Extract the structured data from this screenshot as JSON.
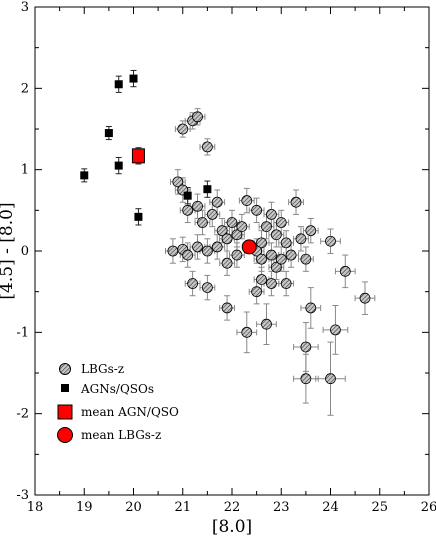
{
  "chart_data": {
    "type": "scatter",
    "title": "",
    "xlabel": "[8.0]",
    "ylabel": "[4.5] - [8.0]",
    "xlim": [
      18,
      26
    ],
    "ylim": [
      -3,
      3
    ],
    "xticks": [
      "18",
      "19",
      "20",
      "21",
      "22",
      "23",
      "24",
      "25",
      "26"
    ],
    "yticks": [
      "-3",
      "-2",
      "-1",
      "0",
      "1",
      "2",
      "3"
    ],
    "grid": false,
    "legend_position": "bottom-left",
    "legend": [
      "LBGs-z",
      "AGNs/QSOs",
      "mean AGN/QSO",
      "mean LBGs-z"
    ],
    "colors": {
      "lbg_fill": "#9a9a9a",
      "agn": "#000000",
      "mean": "#ff0000",
      "error": "#888888"
    },
    "series": [
      {
        "name": "LBGs-z",
        "marker": "circle-hatched",
        "points": [
          {
            "x": 21.0,
            "y": 1.5,
            "ex": 0.15,
            "ey": 0.1
          },
          {
            "x": 21.2,
            "y": 1.6,
            "ex": 0.15,
            "ey": 0.1
          },
          {
            "x": 21.3,
            "y": 1.65,
            "ex": 0.15,
            "ey": 0.1
          },
          {
            "x": 21.5,
            "y": 1.28,
            "ex": 0.15,
            "ey": 0.1
          },
          {
            "x": 20.9,
            "y": 0.85,
            "ex": 0.15,
            "ey": 0.15
          },
          {
            "x": 21.0,
            "y": 0.75,
            "ex": 0.15,
            "ey": 0.15
          },
          {
            "x": 21.1,
            "y": 0.5,
            "ex": 0.15,
            "ey": 0.15
          },
          {
            "x": 21.3,
            "y": 0.55,
            "ex": 0.15,
            "ey": 0.15
          },
          {
            "x": 21.4,
            "y": 0.35,
            "ex": 0.15,
            "ey": 0.15
          },
          {
            "x": 21.6,
            "y": 0.45,
            "ex": 0.15,
            "ey": 0.15
          },
          {
            "x": 21.7,
            "y": 0.6,
            "ex": 0.15,
            "ey": 0.15
          },
          {
            "x": 21.8,
            "y": 0.25,
            "ex": 0.15,
            "ey": 0.15
          },
          {
            "x": 21.9,
            "y": 0.15,
            "ex": 0.15,
            "ey": 0.15
          },
          {
            "x": 22.0,
            "y": 0.35,
            "ex": 0.15,
            "ey": 0.15
          },
          {
            "x": 22.1,
            "y": 0.2,
            "ex": 0.15,
            "ey": 0.15
          },
          {
            "x": 22.2,
            "y": 0.3,
            "ex": 0.15,
            "ey": 0.15
          },
          {
            "x": 22.3,
            "y": 0.62,
            "ex": 0.15,
            "ey": 0.15
          },
          {
            "x": 22.5,
            "y": 0.5,
            "ex": 0.15,
            "ey": 0.15
          },
          {
            "x": 22.6,
            "y": 0.1,
            "ex": 0.15,
            "ey": 0.15
          },
          {
            "x": 22.7,
            "y": 0.3,
            "ex": 0.15,
            "ey": 0.15
          },
          {
            "x": 22.8,
            "y": 0.45,
            "ex": 0.15,
            "ey": 0.15
          },
          {
            "x": 22.9,
            "y": 0.2,
            "ex": 0.15,
            "ey": 0.15
          },
          {
            "x": 23.0,
            "y": 0.35,
            "ex": 0.15,
            "ey": 0.15
          },
          {
            "x": 23.1,
            "y": 0.1,
            "ex": 0.15,
            "ey": 0.15
          },
          {
            "x": 23.3,
            "y": 0.6,
            "ex": 0.15,
            "ey": 0.15
          },
          {
            "x": 23.4,
            "y": 0.15,
            "ex": 0.15,
            "ey": 0.15
          },
          {
            "x": 23.6,
            "y": 0.25,
            "ex": 0.15,
            "ey": 0.15
          },
          {
            "x": 23.5,
            "y": -0.1,
            "ex": 0.15,
            "ey": 0.15
          },
          {
            "x": 24.0,
            "y": 0.12,
            "ex": 0.2,
            "ey": 0.15
          },
          {
            "x": 20.8,
            "y": 0.0,
            "ex": 0.15,
            "ey": 0.15
          },
          {
            "x": 21.0,
            "y": 0.02,
            "ex": 0.15,
            "ey": 0.15
          },
          {
            "x": 21.1,
            "y": -0.05,
            "ex": 0.15,
            "ey": 0.15
          },
          {
            "x": 21.3,
            "y": 0.05,
            "ex": 0.15,
            "ey": 0.15
          },
          {
            "x": 21.5,
            "y": 0.0,
            "ex": 0.15,
            "ey": 0.15
          },
          {
            "x": 21.7,
            "y": 0.05,
            "ex": 0.15,
            "ey": 0.15
          },
          {
            "x": 21.9,
            "y": -0.15,
            "ex": 0.15,
            "ey": 0.15
          },
          {
            "x": 22.1,
            "y": -0.05,
            "ex": 0.15,
            "ey": 0.15
          },
          {
            "x": 22.5,
            "y": 0.0,
            "ex": 0.15,
            "ey": 0.15
          },
          {
            "x": 22.6,
            "y": -0.1,
            "ex": 0.15,
            "ey": 0.15
          },
          {
            "x": 22.8,
            "y": -0.05,
            "ex": 0.15,
            "ey": 0.15
          },
          {
            "x": 22.9,
            "y": -0.2,
            "ex": 0.15,
            "ey": 0.15
          },
          {
            "x": 23.0,
            "y": -0.1,
            "ex": 0.15,
            "ey": 0.15
          },
          {
            "x": 23.2,
            "y": -0.05,
            "ex": 0.15,
            "ey": 0.15
          },
          {
            "x": 22.6,
            "y": -0.35,
            "ex": 0.15,
            "ey": 0.15
          },
          {
            "x": 22.8,
            "y": -0.4,
            "ex": 0.15,
            "ey": 0.15
          },
          {
            "x": 23.1,
            "y": -0.4,
            "ex": 0.15,
            "ey": 0.15
          },
          {
            "x": 22.5,
            "y": -0.5,
            "ex": 0.15,
            "ey": 0.15
          },
          {
            "x": 21.2,
            "y": -0.4,
            "ex": 0.15,
            "ey": 0.15
          },
          {
            "x": 21.5,
            "y": -0.45,
            "ex": 0.15,
            "ey": 0.15
          },
          {
            "x": 21.9,
            "y": -0.7,
            "ex": 0.15,
            "ey": 0.15
          },
          {
            "x": 24.3,
            "y": -0.25,
            "ex": 0.2,
            "ey": 0.2
          },
          {
            "x": 24.7,
            "y": -0.58,
            "ex": 0.2,
            "ey": 0.2
          },
          {
            "x": 23.6,
            "y": -0.7,
            "ex": 0.2,
            "ey": 0.25
          },
          {
            "x": 22.7,
            "y": -0.9,
            "ex": 0.2,
            "ey": 0.25
          },
          {
            "x": 22.3,
            "y": -1.0,
            "ex": 0.2,
            "ey": 0.25
          },
          {
            "x": 24.1,
            "y": -0.97,
            "ex": 0.25,
            "ey": 0.3
          },
          {
            "x": 23.5,
            "y": -1.18,
            "ex": 0.25,
            "ey": 0.3
          },
          {
            "x": 23.5,
            "y": -1.57,
            "ex": 0.25,
            "ey": 0.3
          },
          {
            "x": 24.0,
            "y": -1.57,
            "ex": 0.3,
            "ey": 0.45
          }
        ]
      },
      {
        "name": "AGNs/QSOs",
        "marker": "square",
        "points": [
          {
            "x": 19.0,
            "y": 0.93,
            "ex": 0.0,
            "ey": 0.08
          },
          {
            "x": 19.5,
            "y": 1.45,
            "ex": 0.0,
            "ey": 0.08
          },
          {
            "x": 19.7,
            "y": 2.05,
            "ex": 0.0,
            "ey": 0.1
          },
          {
            "x": 20.0,
            "y": 2.12,
            "ex": 0.0,
            "ey": 0.1
          },
          {
            "x": 19.7,
            "y": 1.05,
            "ex": 0.0,
            "ey": 0.1
          },
          {
            "x": 20.1,
            "y": 0.42,
            "ex": 0.0,
            "ey": 0.1
          },
          {
            "x": 21.1,
            "y": 0.68,
            "ex": 0.0,
            "ey": 0.1
          },
          {
            "x": 21.5,
            "y": 0.76,
            "ex": 0.0,
            "ey": 0.1
          }
        ]
      },
      {
        "name": "mean AGN/QSO",
        "marker": "square-large",
        "points": [
          {
            "x": 20.1,
            "y": 1.17,
            "ex": 0.0,
            "ey": 0.1
          }
        ]
      },
      {
        "name": "mean LBGs-z",
        "marker": "circle-large",
        "points": [
          {
            "x": 22.35,
            "y": 0.05,
            "ex": 0.0,
            "ey": 0.0
          }
        ]
      }
    ]
  }
}
